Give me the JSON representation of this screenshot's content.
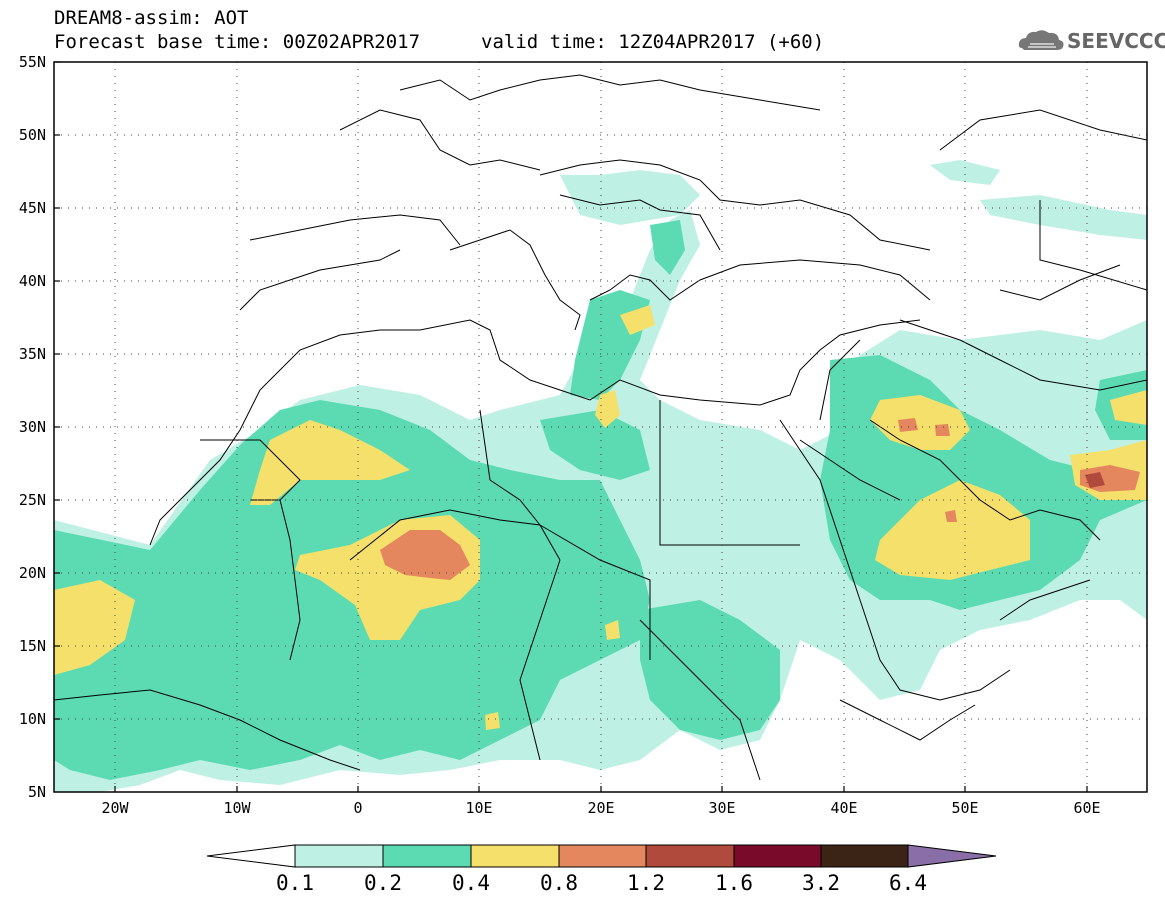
{
  "header": {
    "title": "DREAM8-assim: AOT",
    "forecast_base": "Forecast base time: 00Z02APR2017",
    "valid_time": "valid time: 12Z04APR2017 (+60)",
    "logo_text": "SEEVCCC",
    "logo_icon": "cloud-icon"
  },
  "map": {
    "lat_labels": [
      "55N",
      "50N",
      "45N",
      "40N",
      "35N",
      "30N",
      "25N",
      "20N",
      "15N",
      "10N",
      "5N"
    ],
    "lon_labels": [
      "20W",
      "10W",
      "0",
      "10E",
      "20E",
      "30E",
      "40E",
      "50E",
      "60E"
    ],
    "extent": {
      "lon_min": -25,
      "lon_max": 65,
      "lat_min": 5,
      "lat_max": 55
    }
  },
  "colorbar": {
    "levels": [
      "0.1",
      "0.2",
      "0.4",
      "0.8",
      "1.2",
      "1.6",
      "3.2",
      "6.4"
    ],
    "colors": [
      "#ffffff",
      "#bff0e4",
      "#5cdbb2",
      "#f5e06b",
      "#e5875e",
      "#b04a3c",
      "#7a0a2a",
      "#3b2416",
      "#8a6ea8"
    ]
  }
}
